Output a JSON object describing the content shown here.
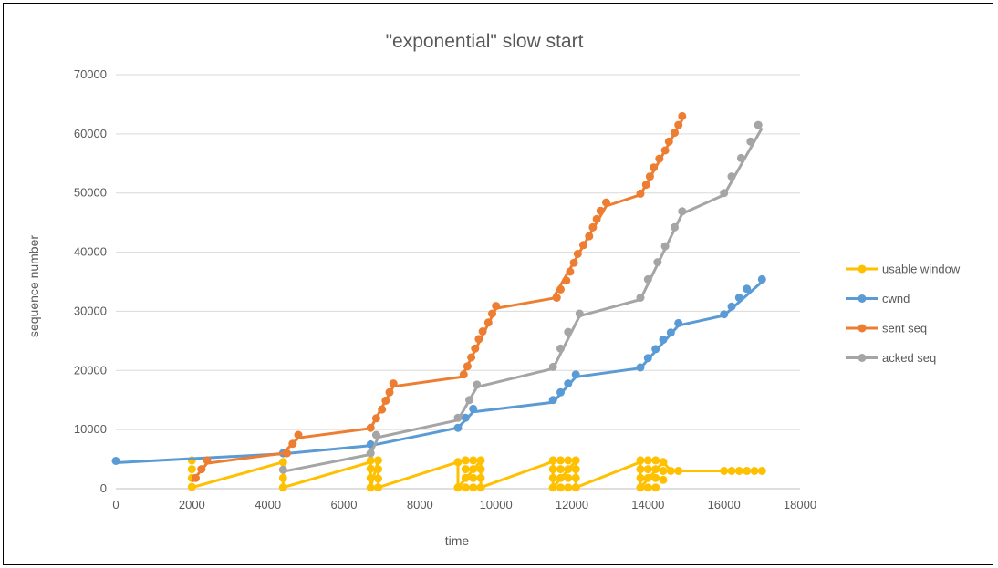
{
  "chart_data": {
    "type": "line",
    "title": "\"exponential\" slow start",
    "xlabel": "time",
    "ylabel": "sequence number",
    "xlim": [
      0,
      18000
    ],
    "ylim": [
      0,
      70000
    ],
    "x_ticks": [
      0,
      2000,
      4000,
      6000,
      8000,
      10000,
      12000,
      14000,
      16000,
      18000
    ],
    "y_ticks": [
      0,
      10000,
      20000,
      30000,
      40000,
      50000,
      60000,
      70000
    ],
    "grid": "horizontal",
    "legend_position": "right",
    "series": [
      {
        "name": "usable window",
        "color": "#FFC000",
        "points": [
          [
            2000,
            4800
          ],
          [
            2000,
            3300
          ],
          [
            2000,
            1800
          ],
          [
            2000,
            300
          ],
          [
            4400,
            4500
          ],
          [
            4400,
            1800
          ],
          [
            4400,
            200
          ],
          [
            6700,
            4800
          ],
          [
            6700,
            3400
          ],
          [
            6700,
            1800
          ],
          [
            6700,
            200
          ],
          [
            6900,
            4800
          ],
          [
            6900,
            3300
          ],
          [
            6900,
            1700
          ],
          [
            6900,
            200
          ],
          [
            9000,
            4500
          ],
          [
            9000,
            200
          ],
          [
            9200,
            4800
          ],
          [
            9200,
            3300
          ],
          [
            9200,
            1800
          ],
          [
            9200,
            200
          ],
          [
            9400,
            4800
          ],
          [
            9400,
            3300
          ],
          [
            9400,
            1800
          ],
          [
            9400,
            200
          ],
          [
            9600,
            4800
          ],
          [
            9600,
            3300
          ],
          [
            9600,
            1800
          ],
          [
            9600,
            200
          ],
          [
            11500,
            4800
          ],
          [
            11500,
            3300
          ],
          [
            11500,
            1800
          ],
          [
            11500,
            200
          ],
          [
            11700,
            4800
          ],
          [
            11700,
            3300
          ],
          [
            11700,
            1800
          ],
          [
            11700,
            200
          ],
          [
            11900,
            4800
          ],
          [
            11900,
            3300
          ],
          [
            11900,
            1800
          ],
          [
            11900,
            200
          ],
          [
            12100,
            4800
          ],
          [
            12100,
            3300
          ],
          [
            12100,
            1800
          ],
          [
            12100,
            200
          ],
          [
            13800,
            4800
          ],
          [
            13800,
            3300
          ],
          [
            13800,
            1800
          ],
          [
            13800,
            200
          ],
          [
            14000,
            4800
          ],
          [
            14000,
            3300
          ],
          [
            14000,
            1800
          ],
          [
            14000,
            200
          ],
          [
            14200,
            4800
          ],
          [
            14200,
            3300
          ],
          [
            14200,
            1800
          ],
          [
            14200,
            200
          ],
          [
            14400,
            4500
          ],
          [
            14400,
            3000
          ],
          [
            14400,
            1500
          ],
          [
            14600,
            3000
          ],
          [
            14800,
            3000
          ],
          [
            16000,
            3000
          ],
          [
            16200,
            3000
          ],
          [
            16400,
            3000
          ],
          [
            16600,
            3000
          ],
          [
            16800,
            3000
          ],
          [
            17000,
            3000
          ]
        ],
        "line": [
          [
            2000,
            200
          ],
          [
            4400,
            4500
          ],
          [
            4400,
            200
          ],
          [
            6700,
            4500
          ],
          [
            6700,
            200
          ],
          [
            6900,
            4700
          ],
          [
            6900,
            200
          ],
          [
            9000,
            4500
          ],
          [
            9000,
            200
          ],
          [
            9600,
            4700
          ],
          [
            9600,
            200
          ],
          [
            11500,
            4600
          ],
          [
            11500,
            200
          ],
          [
            12100,
            4700
          ],
          [
            12100,
            200
          ],
          [
            13800,
            4500
          ],
          [
            13800,
            200
          ],
          [
            14400,
            4500
          ],
          [
            14600,
            3000
          ],
          [
            17000,
            3000
          ]
        ]
      },
      {
        "name": "cwnd",
        "color": "#5B9BD5",
        "points": [
          [
            0,
            4700
          ],
          [
            4400,
            6000
          ],
          [
            6700,
            7500
          ],
          [
            9000,
            10300
          ],
          [
            9200,
            12000
          ],
          [
            9400,
            13500
          ],
          [
            11500,
            15000
          ],
          [
            11700,
            16300
          ],
          [
            11900,
            17800
          ],
          [
            12100,
            19300
          ],
          [
            13800,
            20500
          ],
          [
            14000,
            22100
          ],
          [
            14200,
            23600
          ],
          [
            14400,
            25200
          ],
          [
            14600,
            26400
          ],
          [
            14800,
            28000
          ],
          [
            16000,
            29500
          ],
          [
            16200,
            30800
          ],
          [
            16400,
            32300
          ],
          [
            16600,
            33800
          ],
          [
            17000,
            35400
          ]
        ],
        "line": [
          [
            0,
            4400
          ],
          [
            4400,
            5900
          ],
          [
            6700,
            7300
          ],
          [
            9000,
            10300
          ],
          [
            9400,
            13000
          ],
          [
            11500,
            14600
          ],
          [
            12100,
            18900
          ],
          [
            13800,
            20400
          ],
          [
            14800,
            27600
          ],
          [
            16000,
            29300
          ],
          [
            17000,
            35000
          ]
        ]
      },
      {
        "name": "sent seq",
        "color": "#ED7D31",
        "points": [
          [
            2100,
            1800
          ],
          [
            2250,
            3300
          ],
          [
            2400,
            4800
          ],
          [
            4500,
            6000
          ],
          [
            4650,
            7600
          ],
          [
            4800,
            9100
          ],
          [
            6700,
            10300
          ],
          [
            6850,
            11900
          ],
          [
            7000,
            13400
          ],
          [
            7100,
            14900
          ],
          [
            7200,
            16300
          ],
          [
            7300,
            17800
          ],
          [
            9150,
            19300
          ],
          [
            9250,
            20700
          ],
          [
            9350,
            22200
          ],
          [
            9450,
            23700
          ],
          [
            9550,
            25300
          ],
          [
            9650,
            26600
          ],
          [
            9800,
            28100
          ],
          [
            9900,
            29600
          ],
          [
            10000,
            30900
          ],
          [
            11600,
            32300
          ],
          [
            11700,
            33700
          ],
          [
            11850,
            35200
          ],
          [
            11950,
            36700
          ],
          [
            12050,
            38200
          ],
          [
            12150,
            39700
          ],
          [
            12300,
            41200
          ],
          [
            12450,
            42700
          ],
          [
            12550,
            44200
          ],
          [
            12650,
            45600
          ],
          [
            12750,
            47000
          ],
          [
            12900,
            48400
          ],
          [
            13800,
            49900
          ],
          [
            13950,
            51400
          ],
          [
            14050,
            52800
          ],
          [
            14150,
            54300
          ],
          [
            14300,
            55800
          ],
          [
            14450,
            57200
          ],
          [
            14550,
            58700
          ],
          [
            14700,
            60200
          ],
          [
            14800,
            61500
          ],
          [
            14900,
            63000
          ]
        ],
        "line": [
          [
            2000,
            1200
          ],
          [
            2400,
            4300
          ],
          [
            4400,
            6000
          ],
          [
            4800,
            8600
          ],
          [
            6700,
            10200
          ],
          [
            7300,
            17300
          ],
          [
            9100,
            18900
          ],
          [
            10000,
            30500
          ],
          [
            11500,
            32200
          ],
          [
            12900,
            47800
          ],
          [
            13800,
            49700
          ],
          [
            14900,
            62400
          ]
        ]
      },
      {
        "name": "acked seq",
        "color": "#A5A5A5",
        "points": [
          [
            4400,
            3200
          ],
          [
            6700,
            6000
          ],
          [
            6850,
            9100
          ],
          [
            9000,
            12000
          ],
          [
            9300,
            15000
          ],
          [
            9500,
            17600
          ],
          [
            11500,
            20600
          ],
          [
            11700,
            23700
          ],
          [
            11900,
            26500
          ],
          [
            12200,
            29600
          ],
          [
            13800,
            32300
          ],
          [
            14000,
            35400
          ],
          [
            14250,
            38300
          ],
          [
            14450,
            41000
          ],
          [
            14700,
            44200
          ],
          [
            14900,
            46900
          ],
          [
            16000,
            50000
          ],
          [
            16200,
            52800
          ],
          [
            16450,
            55900
          ],
          [
            16700,
            58700
          ],
          [
            16900,
            61500
          ]
        ],
        "line": [
          [
            4400,
            2900
          ],
          [
            6700,
            5800
          ],
          [
            6900,
            8700
          ],
          [
            9000,
            11600
          ],
          [
            9500,
            17200
          ],
          [
            11500,
            20300
          ],
          [
            12200,
            29200
          ],
          [
            13800,
            32000
          ],
          [
            14900,
            46500
          ],
          [
            16000,
            49700
          ],
          [
            17000,
            61000
          ]
        ]
      }
    ]
  }
}
